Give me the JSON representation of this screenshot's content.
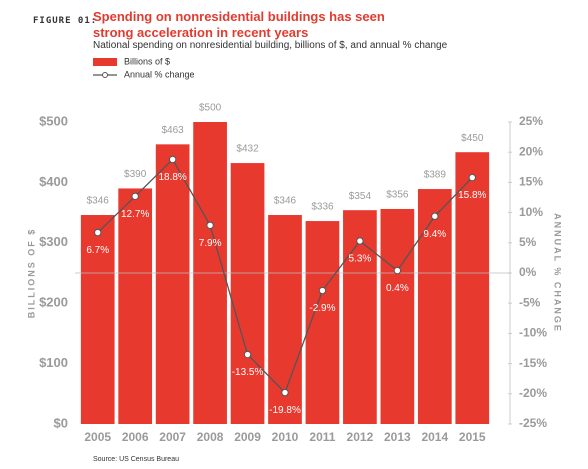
{
  "chart_data": {
    "type": "bar_line",
    "figure_label": "FIGURE 01:",
    "title": "Spending on nonresidential buildings has seen strong acceleration in recent years",
    "subtitle": "National spending on nonresidential building, billions of $, and annual % change",
    "y_label": "BILLIONS OF $",
    "y2_label": "ANNUAL % CHANGE",
    "source": "Source: US Census Bureau",
    "categories": [
      "2005",
      "2006",
      "2007",
      "2008",
      "2009",
      "2010",
      "2011",
      "2012",
      "2013",
      "2014",
      "2015"
    ],
    "series": [
      {
        "name": "Billions of $",
        "type": "bar",
        "color": "#e8392f",
        "values": [
          346,
          390,
          463,
          500,
          432,
          346,
          336,
          354,
          356,
          389,
          450
        ],
        "value_labels": [
          "$346",
          "$390",
          "$463",
          "$500",
          "$432",
          "$346",
          "$336",
          "$354",
          "$356",
          "$389",
          "$450"
        ]
      },
      {
        "name": "Annual % change",
        "type": "line",
        "color": "#555555",
        "axis": "y2",
        "values": [
          6.7,
          12.7,
          18.8,
          7.9,
          -13.5,
          -19.8,
          -2.9,
          5.3,
          0.4,
          9.4,
          15.8
        ],
        "value_labels": [
          "6.7%",
          "12.7%",
          "18.8%",
          "7.9%",
          "-13.5%",
          "-19.8%",
          "-2.9%",
          "5.3%",
          "0.4%",
          "9.4%",
          "15.8%"
        ]
      }
    ],
    "ylim": [
      0,
      500
    ],
    "yticks": [
      {
        "value": 0,
        "label": "$0"
      },
      {
        "value": 100,
        "label": "$100"
      },
      {
        "value": 200,
        "label": "$200"
      },
      {
        "value": 300,
        "label": "$300"
      },
      {
        "value": 400,
        "label": "$400"
      },
      {
        "value": 500,
        "label": "$500"
      }
    ],
    "y2lim": [
      -25,
      25
    ],
    "y2ticks": [
      {
        "value": -25,
        "label": "-25%"
      },
      {
        "value": -20,
        "label": "-20%"
      },
      {
        "value": -15,
        "label": "-15%"
      },
      {
        "value": -10,
        "label": "-10%"
      },
      {
        "value": -5,
        "label": "-5%"
      },
      {
        "value": 0,
        "label": "0%"
      },
      {
        "value": 5,
        "label": "5%"
      },
      {
        "value": 10,
        "label": "10%"
      },
      {
        "value": 15,
        "label": "15%"
      },
      {
        "value": 20,
        "label": "20%"
      },
      {
        "value": 25,
        "label": "25%"
      }
    ],
    "grid": false
  }
}
